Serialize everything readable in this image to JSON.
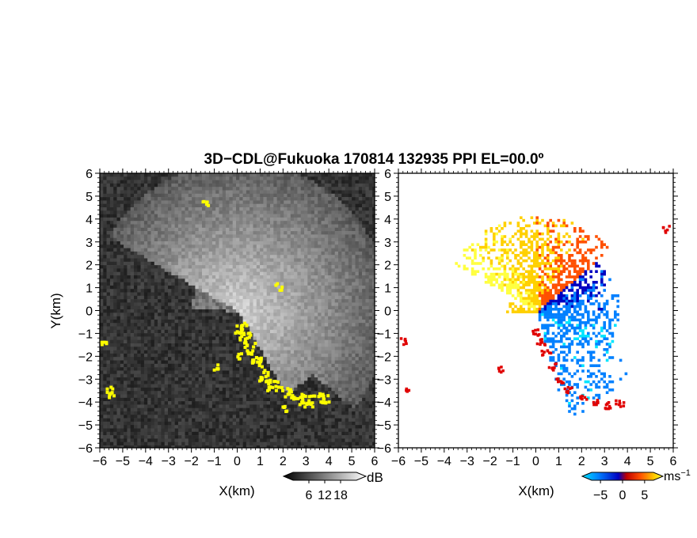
{
  "figure": {
    "title": "3D−CDL@Fukuoka 170814 132935 PPI EL=00.0º"
  },
  "chart_data": [
    {
      "type": "heatmap",
      "panel": "left",
      "xlabel": "X(km)",
      "ylabel": "Y(km)",
      "xlim": [
        -6,
        6
      ],
      "ylim": [
        -6,
        6
      ],
      "xticks": [
        "−6",
        "−5",
        "−4",
        "−3",
        "−2",
        "−1",
        "0",
        "1",
        "2",
        "3",
        "4",
        "5",
        "6"
      ],
      "yticks": [
        "−6",
        "−5",
        "−4",
        "−3",
        "−2",
        "−1",
        "0",
        "1",
        "2",
        "3",
        "4",
        "5",
        "6"
      ],
      "grid": false,
      "colorbar": {
        "unit": "dB",
        "ticks": [
          "6",
          "12",
          "18"
        ],
        "range": [
          0,
          24
        ],
        "colors": [
          "#000000",
          "#ffffff"
        ]
      },
      "overlay_color": "#ffff00"
    },
    {
      "type": "heatmap",
      "panel": "right",
      "xlabel": "X(km)",
      "ylabel": "",
      "xlim": [
        -6,
        6
      ],
      "ylim": [
        -6,
        6
      ],
      "xticks": [
        "−6",
        "−5",
        "−4",
        "−3",
        "−2",
        "−1",
        "0",
        "1",
        "2",
        "3",
        "4",
        "5",
        "6"
      ],
      "yticks": [
        "−6",
        "−5",
        "−4",
        "−3",
        "−2",
        "−1",
        "0",
        "1",
        "2",
        "3",
        "4",
        "5",
        "6"
      ],
      "grid": false,
      "colorbar": {
        "unit": "ms",
        "unit_sup": "−1",
        "ticks": [
          "−5",
          "0",
          "5"
        ],
        "range": [
          -7,
          7
        ],
        "colors": [
          "#00e5ff",
          "#0080ff",
          "#0000c0",
          "#c00000",
          "#ff5000",
          "#ffd000",
          "#ffff40"
        ]
      }
    }
  ]
}
